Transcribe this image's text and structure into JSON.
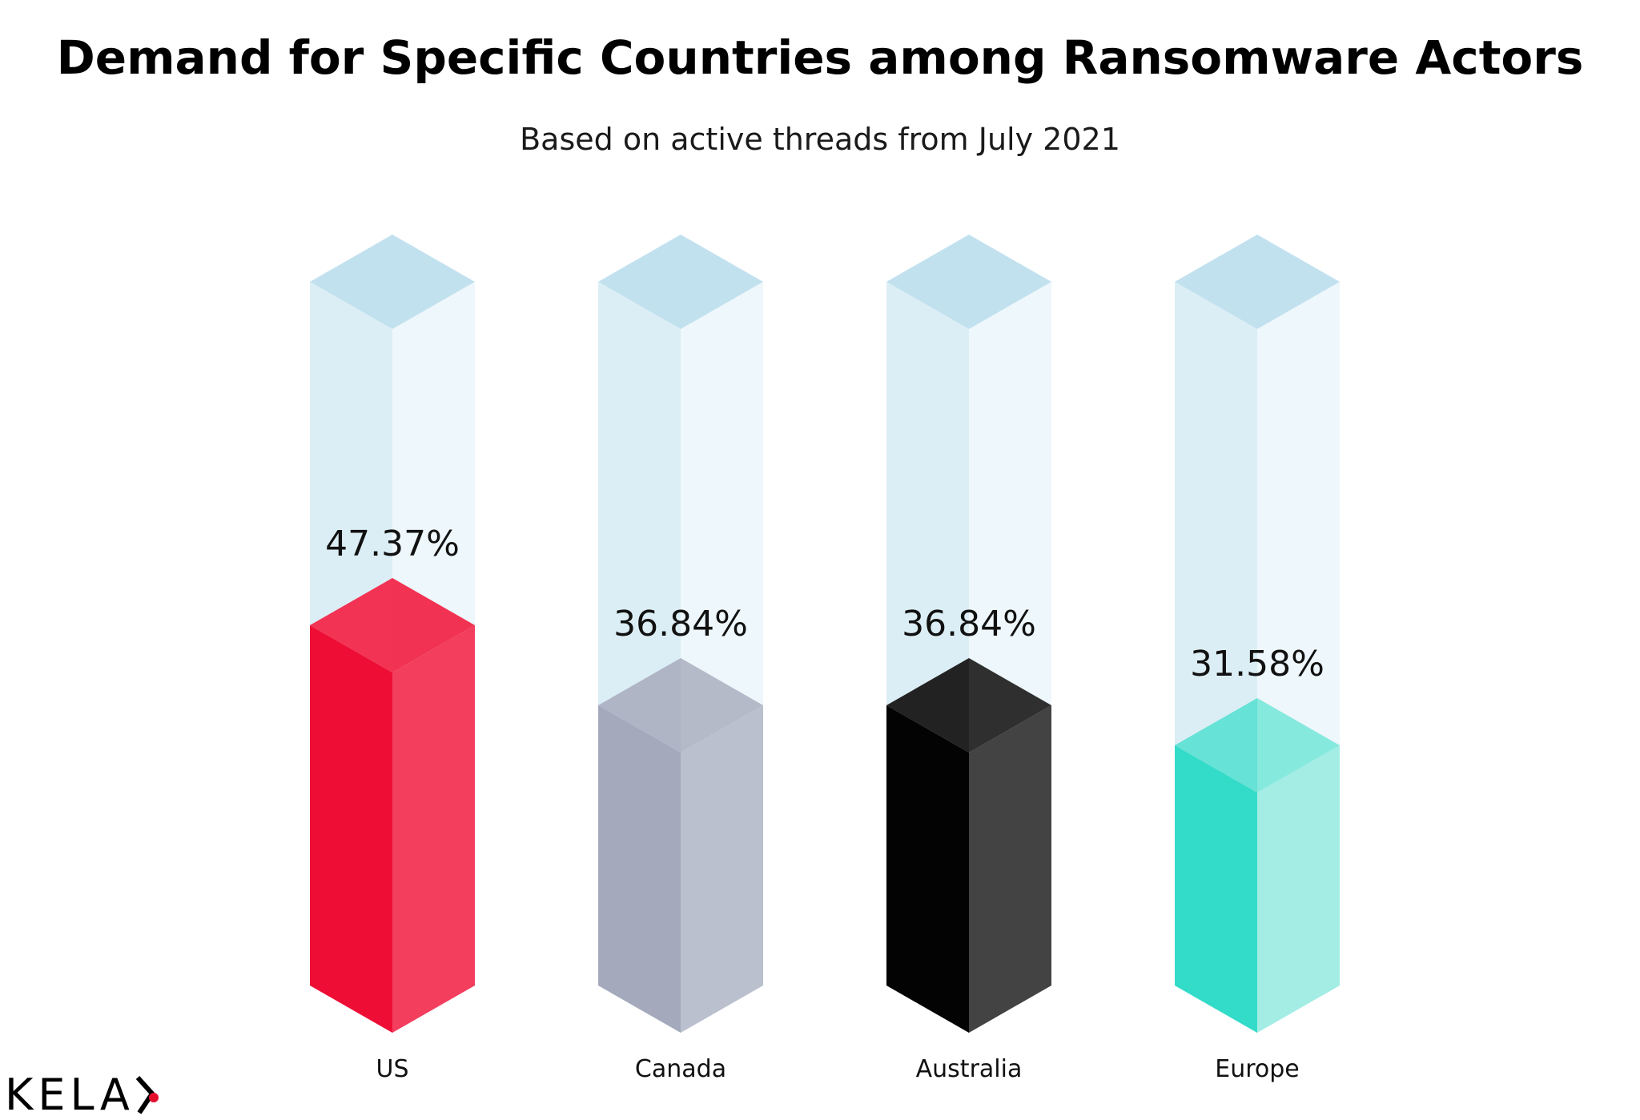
{
  "chart_data": {
    "type": "bar",
    "title": "Demand for Specific Countries among Ransomware Actors",
    "subtitle": "Based on active threads from July 2021",
    "categories": [
      "US",
      "Canada",
      "Australia",
      "Europe"
    ],
    "values": [
      47.37,
      36.84,
      36.84,
      31.58
    ],
    "value_labels": [
      "47.37%",
      "36.84%",
      "36.84%",
      "31.58%"
    ],
    "ylim": [
      0,
      100
    ],
    "bar_style": "isometric-3d",
    "colors": {
      "bars": [
        {
          "left": "#EE0E35",
          "right": "#F33E5E",
          "top_left": "#F23354",
          "top_right": "#F13252"
        },
        {
          "left": "#A4AABC",
          "right": "#BAC0CE",
          "top_left": "#B0B5C5",
          "top_right": "#B4BAC8"
        },
        {
          "left": "#030303",
          "right": "#434343",
          "top_left": "#222222",
          "top_right": "#2F2F2F"
        },
        {
          "left": "#33DBC9",
          "right": "#A3EDE5",
          "top_left": "#66E2D6",
          "top_right": "#86E9DE"
        }
      ],
      "track": {
        "left": "#DCEEF5",
        "right": "#EEF7FB",
        "top": "#C2E1EF"
      }
    }
  },
  "logo": {
    "text": "KELA",
    "accent_color": "#E30F2D"
  }
}
